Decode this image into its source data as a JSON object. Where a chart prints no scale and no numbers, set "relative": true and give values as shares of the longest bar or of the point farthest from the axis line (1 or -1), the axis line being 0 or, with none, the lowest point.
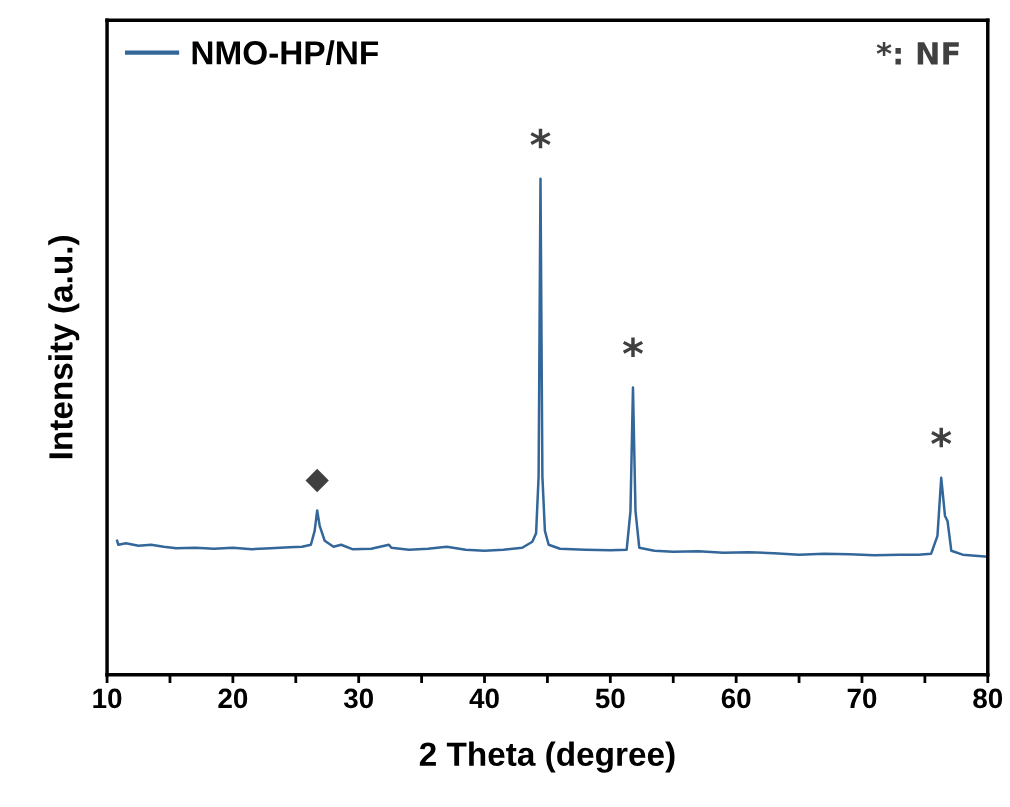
{
  "chart_data": {
    "type": "line",
    "relative": true,
    "xlabel": "2 Theta (degree)",
    "ylabel": "Intensity (a.u.)",
    "xlim": [
      10,
      80
    ],
    "xticks": [
      10,
      {
        "value": 15,
        "label": null
      },
      20,
      {
        "value": 25,
        "label": null
      },
      30,
      {
        "value": 35,
        "label": null
      },
      40,
      {
        "value": 45,
        "label": null
      },
      50,
      {
        "value": 55,
        "label": null
      },
      60,
      {
        "value": 65,
        "label": null
      },
      70,
      {
        "value": 75,
        "label": null
      },
      80
    ],
    "tick_labels": "x",
    "legend": "top left",
    "grid": false,
    "series": [
      {
        "name": "NMO-HP/NF",
        "color": "#336699",
        "x": [
          10.8,
          10.9,
          11.5,
          12.5,
          13.5,
          14.5,
          15.5,
          17,
          18.5,
          20,
          21.5,
          23,
          24.5,
          25.5,
          26.2,
          26.5,
          26.7,
          26.9,
          27.3,
          28,
          28.6,
          29.5,
          31,
          32.4,
          32.6,
          34,
          35.5,
          37,
          38.5,
          40,
          41.5,
          43,
          43.8,
          44.1,
          44.3,
          44.45,
          44.6,
          44.8,
          45.1,
          46,
          48,
          50,
          51.3,
          51.6,
          51.8,
          52.0,
          52.3,
          53.5,
          55,
          57,
          59,
          61,
          63,
          65,
          67,
          69,
          71,
          73,
          74.5,
          75.5,
          76.0,
          76.3,
          76.6,
          76.8,
          77.1,
          78,
          79,
          80
        ],
        "values": [
          0.27,
          0.262,
          0.265,
          0.26,
          0.262,
          0.258,
          0.255,
          0.256,
          0.254,
          0.256,
          0.253,
          0.255,
          0.257,
          0.258,
          0.262,
          0.29,
          0.331,
          0.3,
          0.27,
          0.258,
          0.262,
          0.253,
          0.254,
          0.262,
          0.256,
          0.252,
          0.254,
          0.258,
          0.252,
          0.25,
          0.252,
          0.256,
          0.268,
          0.285,
          0.4,
          1.0,
          0.4,
          0.29,
          0.262,
          0.254,
          0.252,
          0.251,
          0.252,
          0.33,
          0.579,
          0.33,
          0.256,
          0.25,
          0.248,
          0.249,
          0.246,
          0.247,
          0.245,
          0.242,
          0.244,
          0.243,
          0.241,
          0.242,
          0.242,
          0.244,
          0.28,
          0.397,
          0.32,
          0.31,
          0.25,
          0.242,
          0.24,
          0.238
        ]
      }
    ],
    "annotations": [
      {
        "text": "◆",
        "x": 26.7,
        "y": 0.331
      },
      {
        "text": "*",
        "x": 44.45,
        "y": 1.0
      },
      {
        "text": "*",
        "x": 51.8,
        "y": 0.579
      },
      {
        "text": "*",
        "x": 76.3,
        "y": 0.397
      },
      "*: NF"
    ]
  }
}
